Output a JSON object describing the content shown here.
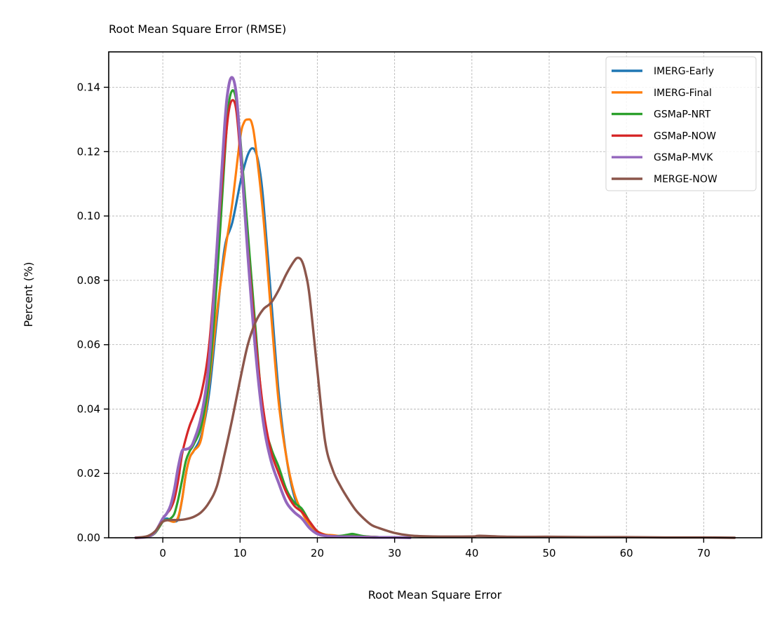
{
  "chart_data": {
    "type": "line",
    "title": "Root Mean Square Error (RMSE)",
    "xlabel": "Root Mean Square Error",
    "ylabel": "Percent (%)",
    "xlim": [
      -7,
      77.5
    ],
    "ylim": [
      0,
      0.151
    ],
    "xticks": [
      0,
      10,
      20,
      30,
      40,
      50,
      60,
      70
    ],
    "xtick_labels": [
      "0",
      "10",
      "20",
      "30",
      "40",
      "50",
      "60",
      "70"
    ],
    "yticks": [
      0,
      0.02,
      0.04,
      0.06,
      0.08,
      0.1,
      0.12,
      0.14
    ],
    "ytick_labels": [
      "0.00",
      "0.02",
      "0.04",
      "0.06",
      "0.08",
      "0.10",
      "0.12",
      "0.14"
    ],
    "grid": true,
    "legend_position": "top-right",
    "series": [
      {
        "name": "IMERG-Early",
        "color": "#1f77b4",
        "x": [
          -3.5,
          -2,
          -1,
          0,
          0.5,
          1,
          1.5,
          2,
          2.5,
          3,
          3.5,
          4,
          5,
          6,
          7,
          8,
          9,
          10,
          10.5,
          11,
          11.5,
          12,
          12.5,
          13,
          14,
          15,
          16,
          17,
          18,
          19,
          20,
          21,
          22,
          23,
          24,
          25,
          26,
          27,
          28,
          30,
          32
        ],
        "y": [
          0,
          0.0003,
          0.0015,
          0.005,
          0.006,
          0.0055,
          0.005,
          0.006,
          0.012,
          0.02,
          0.025,
          0.027,
          0.032,
          0.045,
          0.068,
          0.09,
          0.098,
          0.11,
          0.115,
          0.119,
          0.121,
          0.12,
          0.115,
          0.105,
          0.075,
          0.045,
          0.025,
          0.013,
          0.008,
          0.004,
          0.0015,
          0.0008,
          0.0005,
          0.0005,
          0.0006,
          0.0006,
          0.0004,
          0.0003,
          0.0002,
          0.0001,
          0
        ]
      },
      {
        "name": "IMERG-Final",
        "color": "#ff7f0e",
        "x": [
          -3.5,
          -2,
          -1,
          0,
          0.5,
          1,
          1.5,
          2,
          2.5,
          3,
          3.5,
          4,
          5,
          6,
          7,
          8,
          9,
          10,
          10.5,
          11,
          11.5,
          12,
          13,
          14,
          15,
          16,
          17,
          18,
          19,
          20,
          21,
          22,
          23,
          24,
          25,
          26,
          28,
          30,
          32
        ],
        "y": [
          0,
          0.0003,
          0.0015,
          0.005,
          0.0055,
          0.0052,
          0.005,
          0.0065,
          0.012,
          0.02,
          0.025,
          0.027,
          0.031,
          0.048,
          0.07,
          0.088,
          0.104,
          0.124,
          0.129,
          0.13,
          0.129,
          0.122,
          0.1,
          0.07,
          0.042,
          0.025,
          0.014,
          0.008,
          0.004,
          0.002,
          0.001,
          0.0008,
          0.0005,
          0.0004,
          0.0004,
          0.0003,
          0.0002,
          0.0001,
          0
        ]
      },
      {
        "name": "GSMaP-NRT",
        "color": "#2ca02c",
        "x": [
          -3.5,
          -2,
          -1,
          0,
          0.5,
          1,
          1.5,
          2,
          2.5,
          3,
          3.5,
          4,
          5,
          6,
          7,
          8,
          8.5,
          9,
          9.5,
          10,
          11,
          12,
          13,
          14,
          15,
          16,
          17,
          18,
          19,
          20,
          21,
          22,
          23,
          24,
          24.5,
          25,
          26,
          28,
          30,
          32
        ],
        "y": [
          0,
          0.0003,
          0.0015,
          0.005,
          0.0055,
          0.006,
          0.0075,
          0.012,
          0.018,
          0.024,
          0.027,
          0.029,
          0.035,
          0.05,
          0.08,
          0.118,
          0.134,
          0.139,
          0.136,
          0.125,
          0.095,
          0.065,
          0.038,
          0.028,
          0.022,
          0.015,
          0.011,
          0.009,
          0.005,
          0.002,
          0.0008,
          0.0005,
          0.0006,
          0.001,
          0.0012,
          0.001,
          0.0005,
          0.0002,
          0.0001,
          0
        ]
      },
      {
        "name": "GSMaP-NOW",
        "color": "#d62728",
        "x": [
          -3.5,
          -2,
          -1,
          0,
          0.5,
          1,
          1.5,
          2,
          2.5,
          3,
          3.5,
          4,
          5,
          6,
          7,
          8,
          8.5,
          9,
          9.5,
          10,
          11,
          12,
          13,
          14,
          15,
          16,
          17,
          18,
          19,
          20,
          21,
          22,
          23,
          24,
          26,
          28,
          30,
          32
        ],
        "y": [
          0,
          0.0003,
          0.0018,
          0.006,
          0.0075,
          0.009,
          0.012,
          0.018,
          0.026,
          0.031,
          0.035,
          0.038,
          0.045,
          0.06,
          0.09,
          0.12,
          0.132,
          0.136,
          0.133,
          0.12,
          0.09,
          0.062,
          0.04,
          0.027,
          0.02,
          0.014,
          0.01,
          0.008,
          0.005,
          0.002,
          0.0008,
          0.0005,
          0.0004,
          0.0004,
          0.0003,
          0.0002,
          0.0001,
          0
        ]
      },
      {
        "name": "GSMaP-MVK",
        "color": "#9467bd",
        "x": [
          -3.5,
          -2,
          -1,
          0,
          0.5,
          1,
          1.5,
          2,
          2.5,
          3,
          3.5,
          4,
          5,
          6,
          7,
          8,
          8.5,
          9,
          9.5,
          10,
          11,
          12,
          13,
          14,
          15,
          16,
          17,
          18,
          19,
          20,
          21,
          22,
          23,
          24,
          26,
          28,
          30,
          32
        ],
        "y": [
          0,
          0.0003,
          0.0018,
          0.006,
          0.0075,
          0.01,
          0.015,
          0.022,
          0.027,
          0.0275,
          0.028,
          0.03,
          0.038,
          0.055,
          0.09,
          0.128,
          0.14,
          0.143,
          0.138,
          0.123,
          0.088,
          0.058,
          0.036,
          0.024,
          0.017,
          0.011,
          0.008,
          0.006,
          0.003,
          0.0012,
          0.0006,
          0.0004,
          0.0003,
          0.0003,
          0.0002,
          0.0001,
          0.0001,
          0
        ]
      },
      {
        "name": "MERGE-NOW",
        "color": "#8c564b",
        "x": [
          -3.5,
          -2,
          -1,
          0,
          1,
          2,
          3,
          4,
          5,
          6,
          7,
          8,
          9,
          10,
          11,
          12,
          13,
          14,
          15,
          16,
          17,
          17.5,
          18,
          18.5,
          19,
          20,
          21,
          22,
          23,
          24,
          25,
          26,
          27,
          28,
          30,
          32,
          35,
          40,
          41,
          45,
          50,
          55,
          60,
          65,
          70,
          74
        ],
        "y": [
          0,
          0.0005,
          0.002,
          0.005,
          0.0055,
          0.0055,
          0.0058,
          0.0065,
          0.008,
          0.011,
          0.016,
          0.026,
          0.037,
          0.049,
          0.06,
          0.067,
          0.071,
          0.073,
          0.077,
          0.082,
          0.086,
          0.087,
          0.086,
          0.082,
          0.075,
          0.052,
          0.03,
          0.021,
          0.016,
          0.012,
          0.0085,
          0.006,
          0.004,
          0.003,
          0.0015,
          0.0007,
          0.0004,
          0.0004,
          0.0006,
          0.0003,
          0.0003,
          0.0002,
          0.0002,
          0.0001,
          0.0001,
          0
        ]
      }
    ]
  }
}
